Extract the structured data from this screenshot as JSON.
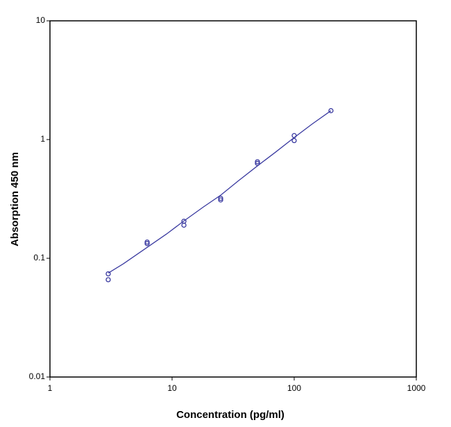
{
  "chart_data": {
    "type": "scatter",
    "xlabel": "Concentration (pg/ml)",
    "ylabel": "Absorption 450 nm",
    "xscale": "log",
    "yscale": "log",
    "xlim": [
      1,
      1000
    ],
    "ylim": [
      0.01,
      10
    ],
    "xticks": [
      1,
      10,
      100,
      1000
    ],
    "yticks": [
      0.01,
      0.1,
      1,
      10
    ],
    "series": [
      {
        "color": "#3a3aa0",
        "x": [
          3,
          3,
          6.25,
          6.25,
          12.5,
          12.5,
          25,
          25,
          50,
          50,
          100,
          100,
          200
        ],
        "values": [
          0.074,
          0.066,
          0.137,
          0.133,
          0.205,
          0.19,
          0.32,
          0.31,
          0.65,
          0.63,
          1.08,
          0.98,
          1.75
        ]
      }
    ],
    "fit": {
      "color": "#3a3aa0",
      "x": [
        3,
        4,
        6,
        9,
        12,
        18,
        25,
        35,
        50,
        70,
        100,
        140,
        200
      ],
      "values": [
        0.075,
        0.09,
        0.12,
        0.16,
        0.2,
        0.27,
        0.34,
        0.45,
        0.6,
        0.78,
        1.04,
        1.35,
        1.75
      ]
    }
  }
}
